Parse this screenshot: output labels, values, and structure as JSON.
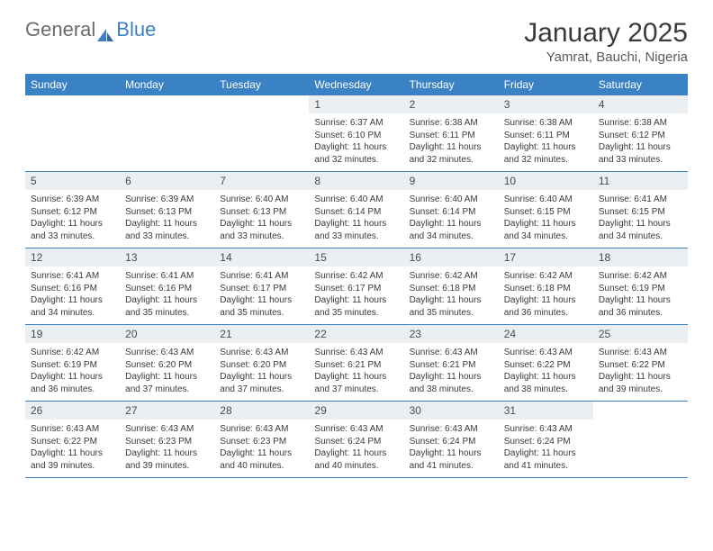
{
  "logo": {
    "part1": "General",
    "part2": "Blue"
  },
  "title": "January 2025",
  "location": "Yamrat, Bauchi, Nigeria",
  "colors": {
    "header_bg": "#3b82c4",
    "header_text": "#ffffff",
    "daynum_bg": "#eceff2",
    "border": "#3b82c4",
    "logo_gray": "#6b6b6b",
    "logo_blue": "#3b7fc4"
  },
  "weekdays": [
    "Sunday",
    "Monday",
    "Tuesday",
    "Wednesday",
    "Thursday",
    "Friday",
    "Saturday"
  ],
  "weeks": [
    [
      {
        "empty": true
      },
      {
        "empty": true
      },
      {
        "empty": true
      },
      {
        "num": "1",
        "sunrise": "6:37 AM",
        "sunset": "6:10 PM",
        "daylight": "11 hours and 32 minutes."
      },
      {
        "num": "2",
        "sunrise": "6:38 AM",
        "sunset": "6:11 PM",
        "daylight": "11 hours and 32 minutes."
      },
      {
        "num": "3",
        "sunrise": "6:38 AM",
        "sunset": "6:11 PM",
        "daylight": "11 hours and 32 minutes."
      },
      {
        "num": "4",
        "sunrise": "6:38 AM",
        "sunset": "6:12 PM",
        "daylight": "11 hours and 33 minutes."
      }
    ],
    [
      {
        "num": "5",
        "sunrise": "6:39 AM",
        "sunset": "6:12 PM",
        "daylight": "11 hours and 33 minutes."
      },
      {
        "num": "6",
        "sunrise": "6:39 AM",
        "sunset": "6:13 PM",
        "daylight": "11 hours and 33 minutes."
      },
      {
        "num": "7",
        "sunrise": "6:40 AM",
        "sunset": "6:13 PM",
        "daylight": "11 hours and 33 minutes."
      },
      {
        "num": "8",
        "sunrise": "6:40 AM",
        "sunset": "6:14 PM",
        "daylight": "11 hours and 33 minutes."
      },
      {
        "num": "9",
        "sunrise": "6:40 AM",
        "sunset": "6:14 PM",
        "daylight": "11 hours and 34 minutes."
      },
      {
        "num": "10",
        "sunrise": "6:40 AM",
        "sunset": "6:15 PM",
        "daylight": "11 hours and 34 minutes."
      },
      {
        "num": "11",
        "sunrise": "6:41 AM",
        "sunset": "6:15 PM",
        "daylight": "11 hours and 34 minutes."
      }
    ],
    [
      {
        "num": "12",
        "sunrise": "6:41 AM",
        "sunset": "6:16 PM",
        "daylight": "11 hours and 34 minutes."
      },
      {
        "num": "13",
        "sunrise": "6:41 AM",
        "sunset": "6:16 PM",
        "daylight": "11 hours and 35 minutes."
      },
      {
        "num": "14",
        "sunrise": "6:41 AM",
        "sunset": "6:17 PM",
        "daylight": "11 hours and 35 minutes."
      },
      {
        "num": "15",
        "sunrise": "6:42 AM",
        "sunset": "6:17 PM",
        "daylight": "11 hours and 35 minutes."
      },
      {
        "num": "16",
        "sunrise": "6:42 AM",
        "sunset": "6:18 PM",
        "daylight": "11 hours and 35 minutes."
      },
      {
        "num": "17",
        "sunrise": "6:42 AM",
        "sunset": "6:18 PM",
        "daylight": "11 hours and 36 minutes."
      },
      {
        "num": "18",
        "sunrise": "6:42 AM",
        "sunset": "6:19 PM",
        "daylight": "11 hours and 36 minutes."
      }
    ],
    [
      {
        "num": "19",
        "sunrise": "6:42 AM",
        "sunset": "6:19 PM",
        "daylight": "11 hours and 36 minutes."
      },
      {
        "num": "20",
        "sunrise": "6:43 AM",
        "sunset": "6:20 PM",
        "daylight": "11 hours and 37 minutes."
      },
      {
        "num": "21",
        "sunrise": "6:43 AM",
        "sunset": "6:20 PM",
        "daylight": "11 hours and 37 minutes."
      },
      {
        "num": "22",
        "sunrise": "6:43 AM",
        "sunset": "6:21 PM",
        "daylight": "11 hours and 37 minutes."
      },
      {
        "num": "23",
        "sunrise": "6:43 AM",
        "sunset": "6:21 PM",
        "daylight": "11 hours and 38 minutes."
      },
      {
        "num": "24",
        "sunrise": "6:43 AM",
        "sunset": "6:22 PM",
        "daylight": "11 hours and 38 minutes."
      },
      {
        "num": "25",
        "sunrise": "6:43 AM",
        "sunset": "6:22 PM",
        "daylight": "11 hours and 39 minutes."
      }
    ],
    [
      {
        "num": "26",
        "sunrise": "6:43 AM",
        "sunset": "6:22 PM",
        "daylight": "11 hours and 39 minutes."
      },
      {
        "num": "27",
        "sunrise": "6:43 AM",
        "sunset": "6:23 PM",
        "daylight": "11 hours and 39 minutes."
      },
      {
        "num": "28",
        "sunrise": "6:43 AM",
        "sunset": "6:23 PM",
        "daylight": "11 hours and 40 minutes."
      },
      {
        "num": "29",
        "sunrise": "6:43 AM",
        "sunset": "6:24 PM",
        "daylight": "11 hours and 40 minutes."
      },
      {
        "num": "30",
        "sunrise": "6:43 AM",
        "sunset": "6:24 PM",
        "daylight": "11 hours and 41 minutes."
      },
      {
        "num": "31",
        "sunrise": "6:43 AM",
        "sunset": "6:24 PM",
        "daylight": "11 hours and 41 minutes."
      },
      {
        "empty": true
      }
    ]
  ],
  "labels": {
    "sunrise": "Sunrise:",
    "sunset": "Sunset:",
    "daylight": "Daylight:"
  }
}
